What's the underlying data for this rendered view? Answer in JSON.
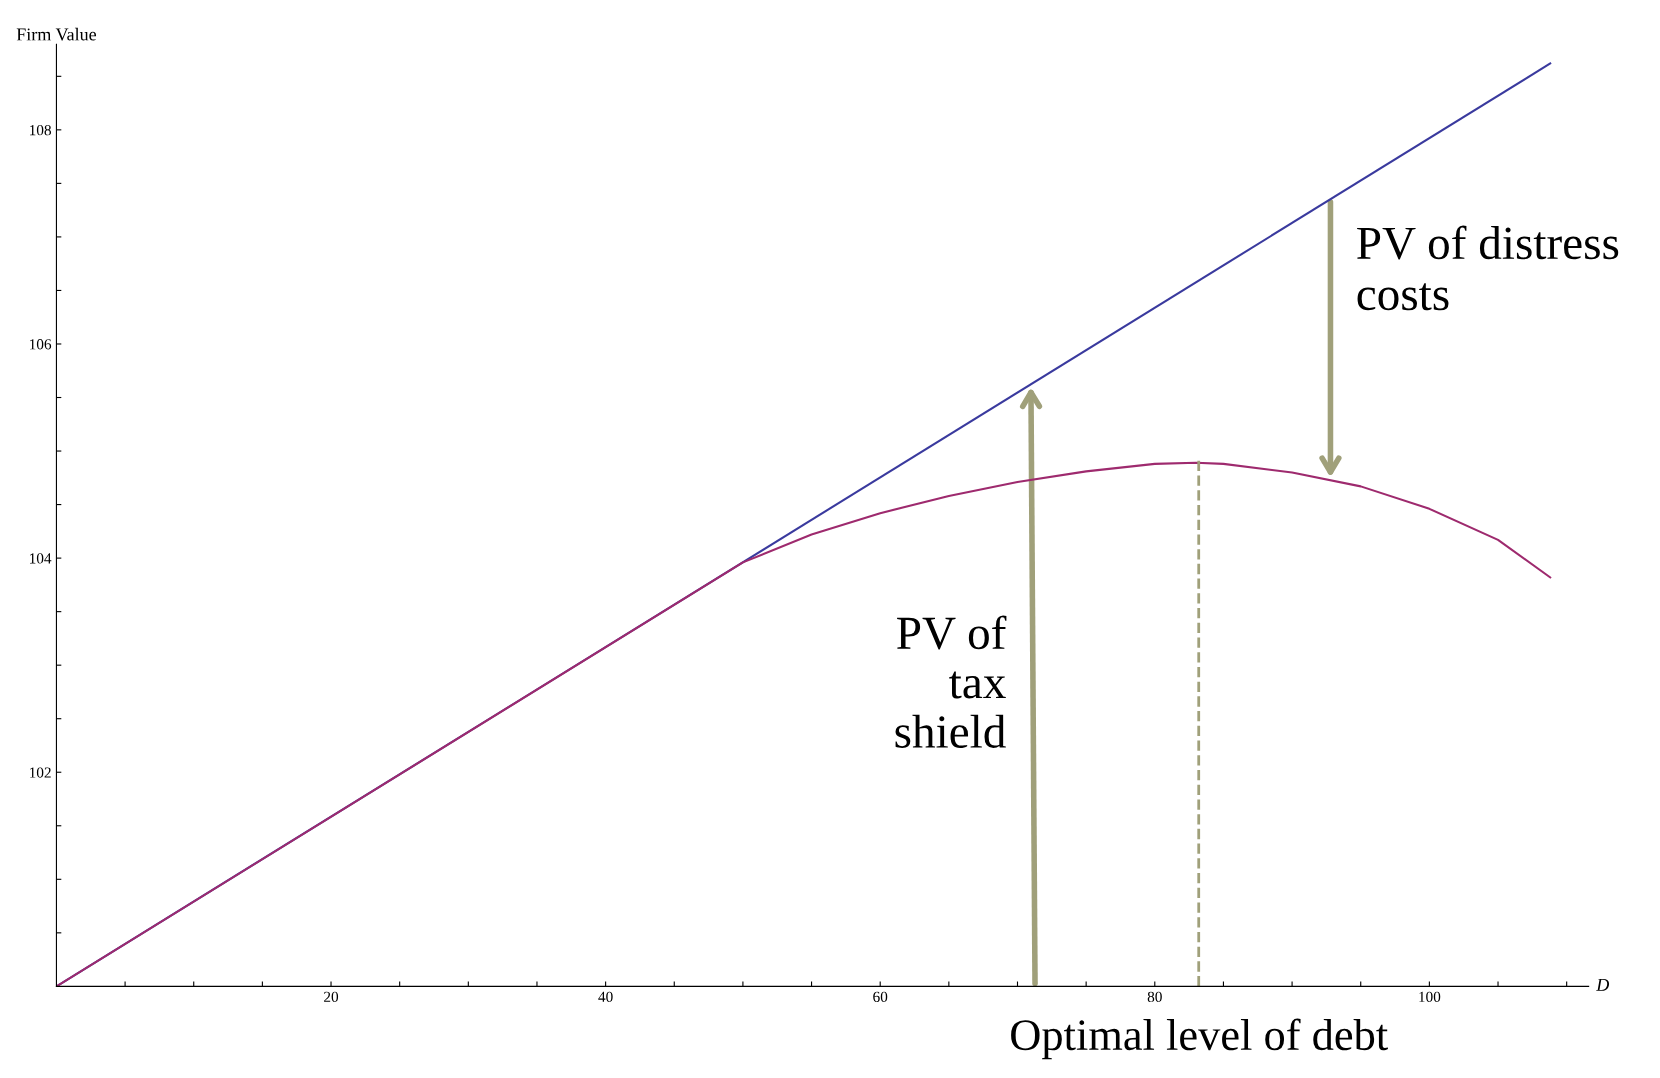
{
  "chart_data": {
    "type": "line",
    "xlabel": "D",
    "ylabel": "Firm Value",
    "xlim": [
      0,
      111.6
    ],
    "ylim": [
      100,
      108.8
    ],
    "xticks": [
      {
        "value": 5,
        "label": null
      },
      {
        "value": 10,
        "label": null
      },
      {
        "value": 15,
        "label": null
      },
      20,
      {
        "value": 25,
        "label": null
      },
      {
        "value": 30,
        "label": null
      },
      {
        "value": 35,
        "label": null
      },
      40,
      {
        "value": 45,
        "label": null
      },
      {
        "value": 50,
        "label": null
      },
      {
        "value": 55,
        "label": null
      },
      60,
      {
        "value": 65,
        "label": null
      },
      {
        "value": 70,
        "label": null
      },
      {
        "value": 75,
        "label": null
      },
      80,
      {
        "value": 85,
        "label": null
      },
      {
        "value": 90,
        "label": null
      },
      {
        "value": 95,
        "label": null
      },
      100,
      {
        "value": 105,
        "label": null
      },
      {
        "value": 110,
        "label": null
      }
    ],
    "yticks": [
      {
        "value": 100.5,
        "label": null
      },
      {
        "value": 101,
        "label": null
      },
      {
        "value": 101.5,
        "label": null
      },
      102,
      {
        "value": 102.5,
        "label": null
      },
      {
        "value": 103,
        "label": null
      },
      {
        "value": 103.5,
        "label": null
      },
      104,
      {
        "value": 104.5,
        "label": null
      },
      {
        "value": 105,
        "label": null
      },
      {
        "value": 105.5,
        "label": null
      },
      106,
      {
        "value": 106.5,
        "label": null
      },
      {
        "value": 107,
        "label": null
      },
      {
        "value": 107.5,
        "label": null
      },
      108,
      {
        "value": 108.5,
        "label": null
      }
    ],
    "grid": false,
    "legend": false,
    "line_style": "solid",
    "marker": "none",
    "series": [
      {
        "color": "#3a3a9e",
        "x": [
          0,
          108.8
        ],
        "values": [
          100,
          108.62
        ]
      },
      {
        "color": "#9e2a6e",
        "x": [
          0,
          50,
          55,
          60,
          65,
          70,
          75,
          80,
          83,
          85,
          90,
          95,
          100,
          105,
          108.8
        ],
        "values": [
          100,
          103.96,
          104.22,
          104.42,
          104.58,
          104.71,
          104.81,
          104.88,
          104.89,
          104.88,
          104.8,
          104.67,
          104.46,
          104.17,
          103.82
        ]
      }
    ],
    "ref_lines": [
      {
        "axis": "x",
        "value": 83.2,
        "label": "Optimal level of debt",
        "color": "#a0a07a",
        "line_style": "dashed"
      }
    ],
    "annotations": [
      "PV of\ntax\nshield",
      "PV of distress\ncosts"
    ]
  }
}
